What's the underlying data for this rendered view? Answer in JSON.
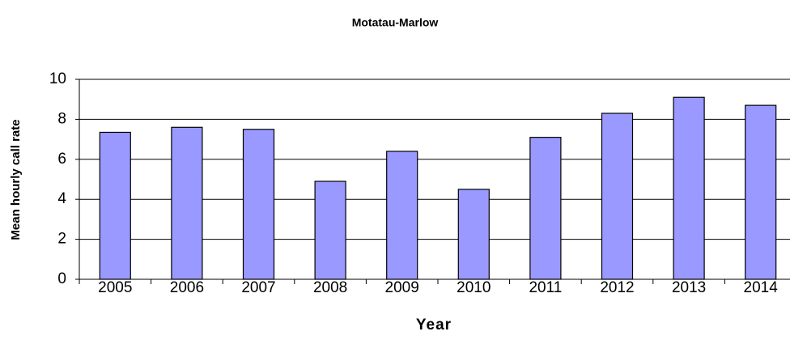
{
  "chart_data": {
    "type": "bar",
    "title": "Motatau-Marlow",
    "x_label": "Year",
    "y_label": "Mean hourly call rate",
    "categories": [
      "2005",
      "2006",
      "2007",
      "2008",
      "2009",
      "2010",
      "2011",
      "2012",
      "2013",
      "2014"
    ],
    "values": [
      7.35,
      7.6,
      7.5,
      4.9,
      6.4,
      4.5,
      7.1,
      8.3,
      9.1,
      8.7
    ],
    "color": "#9999ff",
    "ylim": [
      0,
      10
    ],
    "yticks": [
      0,
      2,
      4,
      6,
      8,
      10
    ],
    "grid": true
  }
}
